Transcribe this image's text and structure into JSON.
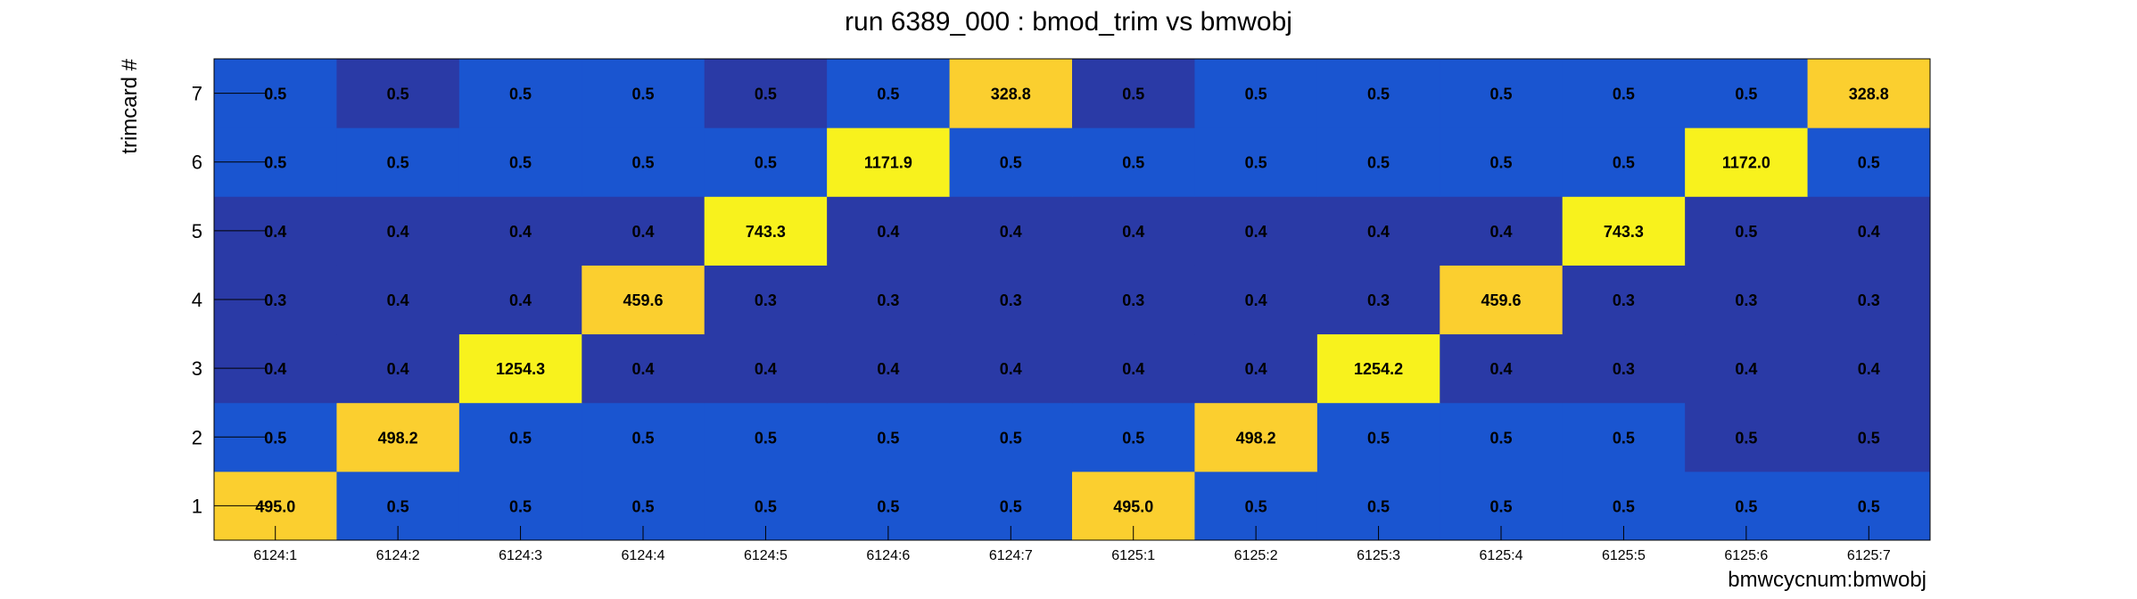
{
  "chart_data": {
    "type": "heatmap",
    "title": "run 6389_000 : bmod_trim vs bmwobj",
    "xlabel": "bmwcycnum:bmwobj",
    "ylabel": "trimcard #",
    "x_categories": [
      "6124:1",
      "6124:2",
      "6124:3",
      "6124:4",
      "6124:5",
      "6124:6",
      "6124:7",
      "6125:1",
      "6125:2",
      "6125:3",
      "6125:4",
      "6125:5",
      "6125:6",
      "6125:7"
    ],
    "y_categories": [
      "1",
      "2",
      "3",
      "4",
      "5",
      "6",
      "7"
    ],
    "values": [
      [
        "495.0",
        "0.5",
        "0.5",
        "0.5",
        "0.5",
        "0.5",
        "0.5",
        "495.0",
        "0.5",
        "0.5",
        "0.5",
        "0.5",
        "0.5",
        "0.5"
      ],
      [
        "0.5",
        "498.2",
        "0.5",
        "0.5",
        "0.5",
        "0.5",
        "0.5",
        "0.5",
        "498.2",
        "0.5",
        "0.5",
        "0.5",
        "0.5",
        "0.5"
      ],
      [
        "0.4",
        "0.4",
        "1254.3",
        "0.4",
        "0.4",
        "0.4",
        "0.4",
        "0.4",
        "0.4",
        "1254.2",
        "0.4",
        "0.3",
        "0.4",
        "0.4"
      ],
      [
        "0.3",
        "0.4",
        "0.4",
        "459.6",
        "0.3",
        "0.3",
        "0.3",
        "0.3",
        "0.4",
        "0.3",
        "459.6",
        "0.3",
        "0.3",
        "0.3"
      ],
      [
        "0.4",
        "0.4",
        "0.4",
        "0.4",
        "743.3",
        "0.4",
        "0.4",
        "0.4",
        "0.4",
        "0.4",
        "0.4",
        "743.3",
        "0.5",
        "0.4"
      ],
      [
        "0.5",
        "0.5",
        "0.5",
        "0.5",
        "0.5",
        "1171.9",
        "0.5",
        "0.5",
        "0.5",
        "0.5",
        "0.5",
        "0.5",
        "1172.0",
        "0.5"
      ],
      [
        "0.5",
        "0.5",
        "0.5",
        "0.5",
        "0.5",
        "0.5",
        "328.8",
        "0.5",
        "0.5",
        "0.5",
        "0.5",
        "0.5",
        "0.5",
        "328.8"
      ]
    ],
    "colors": {
      "low_dark": "#2a3aa6",
      "low_mid": "#1a55d0",
      "high_mid": "#fbcf2f",
      "high_peak": "#f8f21d"
    },
    "cell_colors": [
      [
        "high_mid",
        "low_mid",
        "low_mid",
        "low_mid",
        "low_mid",
        "low_mid",
        "low_mid",
        "high_mid",
        "low_mid",
        "low_mid",
        "low_mid",
        "low_mid",
        "low_mid",
        "low_mid"
      ],
      [
        "low_mid",
        "high_mid",
        "low_mid",
        "low_mid",
        "low_mid",
        "low_mid",
        "low_mid",
        "low_mid",
        "high_mid",
        "low_mid",
        "low_mid",
        "low_mid",
        "low_dark",
        "low_dark"
      ],
      [
        "low_dark",
        "low_dark",
        "high_peak",
        "low_dark",
        "low_dark",
        "low_dark",
        "low_dark",
        "low_dark",
        "low_dark",
        "high_peak",
        "low_dark",
        "low_dark",
        "low_dark",
        "low_dark"
      ],
      [
        "low_dark",
        "low_dark",
        "low_dark",
        "high_mid",
        "low_dark",
        "low_dark",
        "low_dark",
        "low_dark",
        "low_dark",
        "low_dark",
        "high_mid",
        "low_dark",
        "low_dark",
        "low_dark"
      ],
      [
        "low_dark",
        "low_dark",
        "low_dark",
        "low_dark",
        "high_peak",
        "low_dark",
        "low_dark",
        "low_dark",
        "low_dark",
        "low_dark",
        "low_dark",
        "high_peak",
        "low_dark",
        "low_dark"
      ],
      [
        "low_mid",
        "low_mid",
        "low_mid",
        "low_mid",
        "low_mid",
        "high_peak",
        "low_mid",
        "low_mid",
        "low_mid",
        "low_mid",
        "low_mid",
        "low_mid",
        "high_peak",
        "low_mid"
      ],
      [
        "low_mid",
        "low_dark",
        "low_mid",
        "low_mid",
        "low_dark",
        "low_mid",
        "high_mid",
        "low_dark",
        "low_mid",
        "low_mid",
        "low_mid",
        "low_mid",
        "low_mid",
        "high_mid"
      ]
    ],
    "grid": false,
    "legend": "none"
  }
}
